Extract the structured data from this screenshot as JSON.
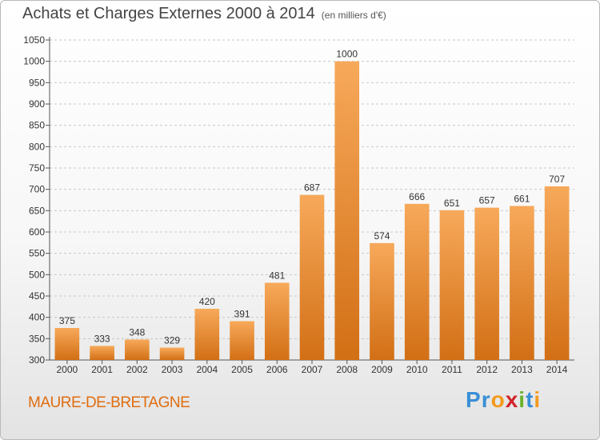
{
  "header": {
    "title": "Achats et Charges Externes 2000 à 2014",
    "subtitle": "(en milliers d'€)"
  },
  "footer": {
    "commune": "MAURE-DE-BRETAGNE",
    "brand": "Proxiti",
    "brand_letters": [
      "P",
      "r",
      "o",
      "x",
      "i",
      "t",
      "i"
    ],
    "brand_colors": [
      "#3a8fd6",
      "#3a8fd6",
      "#f39a1e",
      "#d2232a",
      "#6ab42d",
      "#3a8fd6",
      "#f39a1e"
    ]
  },
  "chart_data": {
    "type": "bar",
    "title": "Achats et Charges Externes 2000 à 2014",
    "subtitle": "(en milliers d'€)",
    "categories": [
      "2000",
      "2001",
      "2002",
      "2003",
      "2004",
      "2005",
      "2006",
      "2007",
      "2008",
      "2009",
      "2010",
      "2011",
      "2012",
      "2013",
      "2014"
    ],
    "values": [
      375,
      333,
      348,
      329,
      420,
      391,
      481,
      687,
      1000,
      574,
      666,
      651,
      657,
      661,
      707
    ],
    "ylim": [
      300,
      1050
    ],
    "yticks": [
      300,
      350,
      400,
      450,
      500,
      550,
      600,
      650,
      700,
      750,
      800,
      850,
      900,
      950,
      1000,
      1050
    ],
    "grid": "horizontal dashed",
    "bar_color_top": "#f7a95a",
    "bar_color_bottom": "#d26f15",
    "xlabel": "",
    "ylabel": ""
  }
}
